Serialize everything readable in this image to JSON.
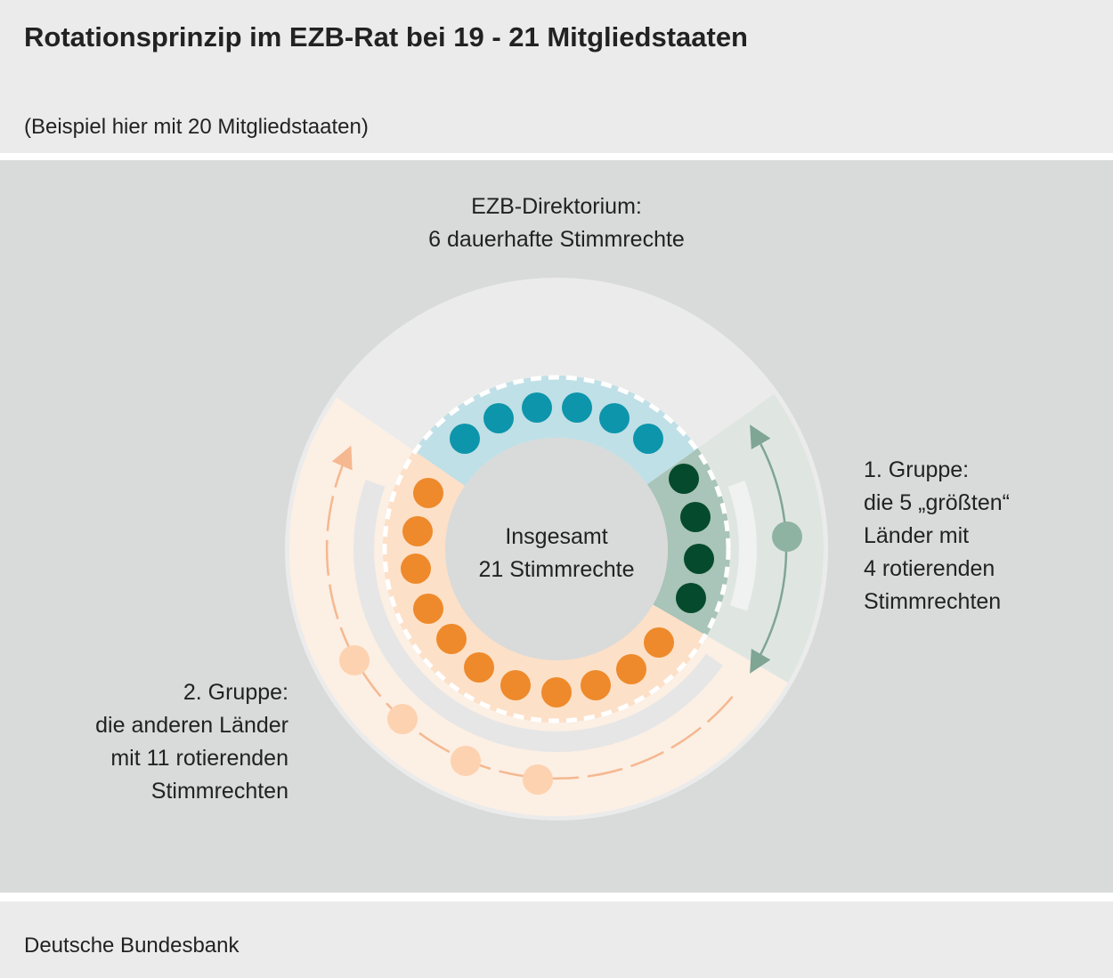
{
  "header": {
    "title": "Rotationsprinzip im EZB-Rat bei 19 - 21 Mitgliedstaaten",
    "subtitle": "(Beispiel hier mit 20 Mitgliedstaaten)"
  },
  "diagram": {
    "board_label": [
      "EZB-Direktorium:",
      "6 dauerhafte Stimmrechte"
    ],
    "center_label": [
      "Insgesamt",
      "21 Stimmrechte"
    ],
    "group1_label": [
      "1. Gruppe:",
      "die 5 „größten“",
      "Länder mit",
      "4 rotierenden",
      "Stimmrechten"
    ],
    "group2_label": [
      "2. Gruppe:",
      "die anderen Länder",
      "mit 11 rotierenden",
      "Stimmrechten"
    ]
  },
  "footer": {
    "source": "Deutsche Bundesbank"
  }
}
